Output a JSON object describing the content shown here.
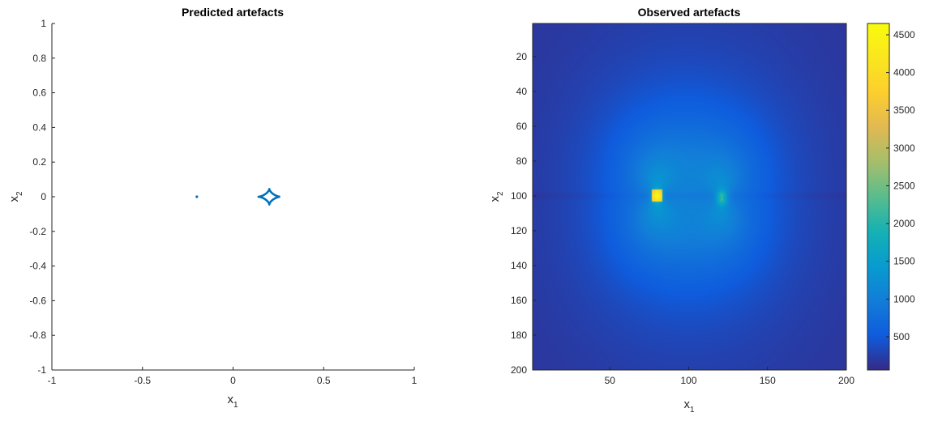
{
  "chart_data": [
    {
      "type": "line",
      "title": "Predicted artefacts",
      "xlabel": "x1",
      "ylabel": "x2",
      "xlabel_main": "x",
      "xlabel_sub": "1",
      "ylabel_main": "x",
      "ylabel_sub": "2",
      "xlim": [
        -1,
        1
      ],
      "ylim": [
        -1,
        1
      ],
      "xticks": [
        -1,
        -0.5,
        0,
        0.5,
        1
      ],
      "xtick_labels": [
        "-1",
        "-0.5",
        "0",
        "0.5",
        "1"
      ],
      "yticks": [
        -1,
        -0.8,
        -0.6,
        -0.4,
        -0.2,
        0,
        0.2,
        0.4,
        0.6,
        0.8,
        1
      ],
      "ytick_labels": [
        "-1",
        "-0.8",
        "-0.6",
        "-0.4",
        "-0.2",
        "0",
        "0.2",
        "0.4",
        "0.6",
        "0.8",
        "1"
      ],
      "grid": false,
      "color": "#0072bd",
      "series": [
        {
          "kind": "point",
          "x": [
            -0.2
          ],
          "y": [
            0
          ]
        },
        {
          "kind": "astroid",
          "center": [
            0.2
          ],
          "half_width": [
            0.06
          ],
          "half_height": [
            0.045
          ]
        }
      ]
    },
    {
      "type": "heatmap",
      "title": "Observed artefacts",
      "xlabel": "x1",
      "ylabel": "x2",
      "xlabel_main": "x",
      "xlabel_sub": "1",
      "ylabel_main": "x",
      "ylabel_sub": "2",
      "xlim": [
        1,
        200
      ],
      "ylim": [
        1,
        200
      ],
      "xticks": [
        50,
        100,
        150,
        200
      ],
      "xtick_labels": [
        "50",
        "100",
        "150",
        "200"
      ],
      "yticks": [
        20,
        40,
        60,
        80,
        100,
        120,
        140,
        160,
        180,
        200
      ],
      "ytick_labels": [
        "20",
        "40",
        "60",
        "80",
        "100",
        "120",
        "140",
        "160",
        "180",
        "200"
      ],
      "colormap": "parula",
      "clim": [
        60,
        4650
      ],
      "colorbar_ticks": [
        500,
        1000,
        1500,
        2000,
        2500,
        3000,
        3500,
        4000,
        4500
      ],
      "colorbar_tick_labels": [
        "500",
        "1000",
        "1500",
        "2000",
        "2500",
        "3000",
        "3500",
        "4000",
        "4500"
      ],
      "background_value": 120,
      "features": [
        {
          "x": 80,
          "y": 100,
          "peak": 4650
        },
        {
          "x": 121,
          "y": 101,
          "peak": 2800
        }
      ]
    }
  ]
}
